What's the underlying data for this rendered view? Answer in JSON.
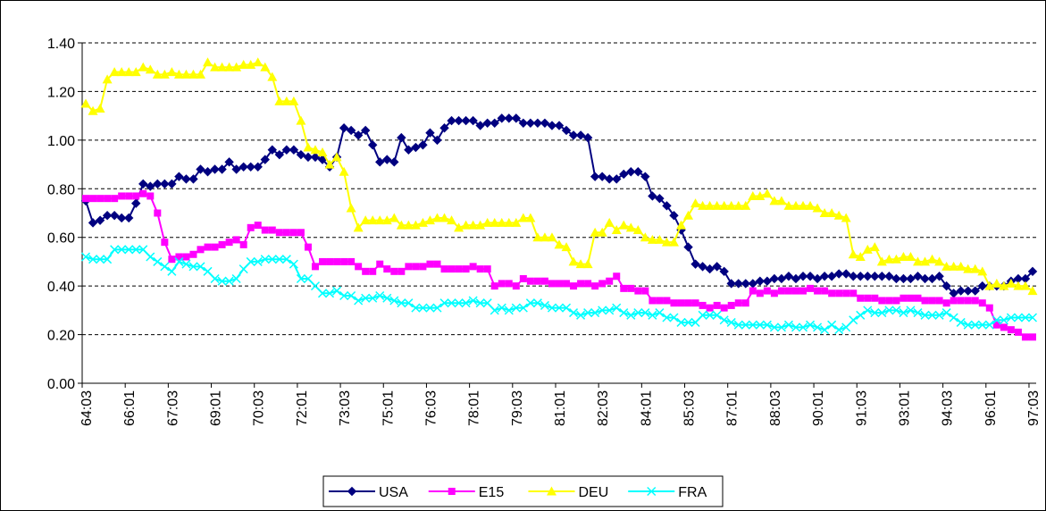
{
  "chart_data": {
    "type": "line",
    "categories": [
      "64:03",
      null,
      null,
      null,
      null,
      null,
      "66:01",
      null,
      null,
      null,
      null,
      null,
      "67:03",
      null,
      null,
      null,
      null,
      null,
      "69:01",
      null,
      null,
      null,
      null,
      null,
      "70:03",
      null,
      null,
      null,
      null,
      null,
      "72:01",
      null,
      null,
      null,
      null,
      null,
      "73:03",
      null,
      null,
      null,
      null,
      null,
      "75:01",
      null,
      null,
      null,
      null,
      null,
      "76:03",
      null,
      null,
      null,
      null,
      null,
      "78:01",
      null,
      null,
      null,
      null,
      null,
      "79:03",
      null,
      null,
      null,
      null,
      null,
      "81:01",
      null,
      null,
      null,
      null,
      null,
      "82:03",
      null,
      null,
      null,
      null,
      null,
      "84:01",
      null,
      null,
      null,
      null,
      null,
      "85:03",
      null,
      null,
      null,
      null,
      null,
      "87:01",
      null,
      null,
      null,
      null,
      null,
      "88:03",
      null,
      null,
      null,
      null,
      null,
      "90:01",
      null,
      null,
      null,
      null,
      null,
      "91:03",
      null,
      null,
      null,
      null,
      null,
      "93:01",
      null,
      null,
      null,
      null,
      null,
      "94:03",
      null,
      null,
      null,
      null,
      null,
      "96:01",
      null,
      null,
      null,
      null,
      null,
      "97:03"
    ],
    "series": [
      {
        "name": "USA",
        "color": "#000080",
        "marker": "diamond",
        "values": [
          0.75,
          0.66,
          0.67,
          0.69,
          0.69,
          0.68,
          0.68,
          0.74,
          0.82,
          0.81,
          0.82,
          0.82,
          0.82,
          0.85,
          0.84,
          0.84,
          0.88,
          0.87,
          0.88,
          0.88,
          0.91,
          0.88,
          0.89,
          0.89,
          0.89,
          0.92,
          0.96,
          0.94,
          0.96,
          0.96,
          0.94,
          0.93,
          0.93,
          0.92,
          0.89,
          0.93,
          1.05,
          1.04,
          1.02,
          1.04,
          0.98,
          0.91,
          0.92,
          0.91,
          1.01,
          0.96,
          0.97,
          0.98,
          1.03,
          1.0,
          1.05,
          1.08,
          1.08,
          1.08,
          1.08,
          1.06,
          1.07,
          1.07,
          1.09,
          1.09,
          1.09,
          1.07,
          1.07,
          1.07,
          1.07,
          1.06,
          1.06,
          1.04,
          1.02,
          1.02,
          1.01,
          0.85,
          0.85,
          0.84,
          0.84,
          0.86,
          0.87,
          0.87,
          0.85,
          0.77,
          0.76,
          0.73,
          0.69,
          0.63,
          0.56,
          0.49,
          0.48,
          0.47,
          0.48,
          0.46,
          0.41,
          0.41,
          0.41,
          0.41,
          0.42,
          0.42,
          0.43,
          0.43,
          0.44,
          0.43,
          0.44,
          0.44,
          0.43,
          0.44,
          0.44,
          0.45,
          0.45,
          0.44,
          0.44,
          0.44,
          0.44,
          0.44,
          0.44,
          0.43,
          0.43,
          0.43,
          0.44,
          0.43,
          0.43,
          0.44,
          0.4,
          0.37,
          0.38,
          0.38,
          0.38,
          0.4,
          0.4,
          0.4,
          0.4,
          0.42,
          0.43,
          0.43,
          0.46
        ]
      },
      {
        "name": "E15",
        "color": "#ff00ff",
        "marker": "square",
        "values": [
          0.76,
          0.76,
          0.76,
          0.76,
          0.76,
          0.77,
          0.77,
          0.77,
          0.78,
          0.77,
          0.7,
          0.58,
          0.51,
          0.52,
          0.52,
          0.53,
          0.55,
          0.56,
          0.56,
          0.57,
          0.58,
          0.59,
          0.57,
          0.64,
          0.65,
          0.63,
          0.63,
          0.62,
          0.62,
          0.62,
          0.62,
          0.56,
          0.48,
          0.5,
          0.5,
          0.5,
          0.5,
          0.5,
          0.48,
          0.46,
          0.46,
          0.49,
          0.47,
          0.46,
          0.46,
          0.48,
          0.48,
          0.48,
          0.49,
          0.49,
          0.47,
          0.47,
          0.47,
          0.47,
          0.48,
          0.47,
          0.47,
          0.4,
          0.41,
          0.41,
          0.4,
          0.43,
          0.42,
          0.42,
          0.42,
          0.41,
          0.41,
          0.41,
          0.4,
          0.41,
          0.41,
          0.4,
          0.41,
          0.42,
          0.44,
          0.39,
          0.39,
          0.38,
          0.38,
          0.34,
          0.34,
          0.34,
          0.33,
          0.33,
          0.33,
          0.33,
          0.32,
          0.31,
          0.32,
          0.31,
          0.32,
          0.33,
          0.33,
          0.38,
          0.37,
          0.38,
          0.37,
          0.38,
          0.38,
          0.38,
          0.38,
          0.39,
          0.38,
          0.38,
          0.37,
          0.37,
          0.37,
          0.37,
          0.35,
          0.35,
          0.35,
          0.34,
          0.34,
          0.34,
          0.35,
          0.35,
          0.35,
          0.34,
          0.34,
          0.34,
          0.33,
          0.34,
          0.34,
          0.34,
          0.34,
          0.33,
          0.31,
          0.24,
          0.23,
          0.22,
          0.21,
          0.19,
          0.19
        ]
      },
      {
        "name": "DEU",
        "color": "#ffff00",
        "marker": "triangle",
        "values": [
          1.15,
          1.12,
          1.13,
          1.25,
          1.28,
          1.28,
          1.28,
          1.28,
          1.3,
          1.29,
          1.27,
          1.27,
          1.28,
          1.27,
          1.27,
          1.27,
          1.27,
          1.32,
          1.3,
          1.3,
          1.3,
          1.3,
          1.31,
          1.31,
          1.32,
          1.3,
          1.26,
          1.16,
          1.16,
          1.16,
          1.08,
          0.97,
          0.96,
          0.95,
          0.9,
          0.93,
          0.87,
          0.72,
          0.64,
          0.67,
          0.67,
          0.67,
          0.67,
          0.68,
          0.65,
          0.65,
          0.65,
          0.66,
          0.67,
          0.68,
          0.68,
          0.67,
          0.64,
          0.65,
          0.65,
          0.65,
          0.66,
          0.66,
          0.66,
          0.66,
          0.66,
          0.68,
          0.68,
          0.6,
          0.6,
          0.6,
          0.57,
          0.56,
          0.5,
          0.49,
          0.49,
          0.62,
          0.62,
          0.66,
          0.63,
          0.65,
          0.64,
          0.63,
          0.6,
          0.59,
          0.59,
          0.58,
          0.58,
          0.65,
          0.69,
          0.74,
          0.73,
          0.73,
          0.73,
          0.73,
          0.73,
          0.73,
          0.73,
          0.77,
          0.77,
          0.78,
          0.75,
          0.75,
          0.73,
          0.73,
          0.73,
          0.73,
          0.72,
          0.7,
          0.7,
          0.69,
          0.68,
          0.53,
          0.52,
          0.55,
          0.56,
          0.5,
          0.51,
          0.51,
          0.52,
          0.52,
          0.5,
          0.5,
          0.51,
          0.5,
          0.48,
          0.48,
          0.48,
          0.47,
          0.47,
          0.46,
          0.4,
          0.41,
          0.4,
          0.41,
          0.4,
          0.4,
          0.38
        ]
      },
      {
        "name": "FRA",
        "color": "#00ffff",
        "marker": "x",
        "values": [
          0.52,
          0.51,
          0.51,
          0.51,
          0.55,
          0.55,
          0.55,
          0.55,
          0.55,
          0.52,
          0.5,
          0.48,
          0.46,
          0.5,
          0.49,
          0.48,
          0.48,
          0.46,
          0.43,
          0.42,
          0.42,
          0.43,
          0.47,
          0.5,
          0.5,
          0.51,
          0.51,
          0.51,
          0.51,
          0.49,
          0.43,
          0.43,
          0.4,
          0.37,
          0.37,
          0.38,
          0.36,
          0.36,
          0.34,
          0.35,
          0.35,
          0.36,
          0.35,
          0.34,
          0.33,
          0.33,
          0.31,
          0.31,
          0.31,
          0.31,
          0.33,
          0.33,
          0.33,
          0.33,
          0.34,
          0.33,
          0.33,
          0.3,
          0.31,
          0.3,
          0.31,
          0.31,
          0.33,
          0.33,
          0.32,
          0.31,
          0.31,
          0.31,
          0.29,
          0.28,
          0.29,
          0.29,
          0.3,
          0.3,
          0.31,
          0.29,
          0.28,
          0.29,
          0.29,
          0.28,
          0.29,
          0.27,
          0.27,
          0.25,
          0.25,
          0.25,
          0.28,
          0.28,
          0.28,
          0.26,
          0.25,
          0.24,
          0.24,
          0.24,
          0.24,
          0.24,
          0.23,
          0.23,
          0.24,
          0.23,
          0.23,
          0.24,
          0.23,
          0.22,
          0.24,
          0.22,
          0.23,
          0.26,
          0.28,
          0.3,
          0.29,
          0.29,
          0.3,
          0.3,
          0.29,
          0.3,
          0.29,
          0.28,
          0.28,
          0.28,
          0.29,
          0.27,
          0.25,
          0.24,
          0.24,
          0.24,
          0.24,
          0.26,
          0.26,
          0.27,
          0.27,
          0.27,
          0.27
        ]
      }
    ],
    "ylim": [
      0,
      1.4
    ],
    "yticks": [
      {
        "value": 0,
        "label": "0.00"
      },
      {
        "value": 0.2,
        "label": "0.20"
      },
      {
        "value": 0.4,
        "label": "0.40"
      },
      {
        "value": 0.6,
        "label": "0.60"
      },
      {
        "value": 0.8,
        "label": "0.80"
      },
      {
        "value": 1.0,
        "label": "1.00"
      },
      {
        "value": 1.2,
        "label": "1.20"
      },
      {
        "value": 1.4,
        "label": "1.40"
      }
    ],
    "grid": true,
    "legend": "bottom"
  }
}
